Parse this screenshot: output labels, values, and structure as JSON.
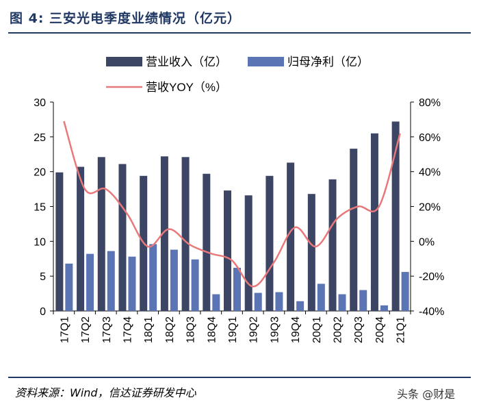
{
  "title": "图 4:  三安光电季度业绩情况（亿元）",
  "source": "资料来源：Wind，信达证券研发中心",
  "watermark": "头条 @财是",
  "colors": {
    "revenue": "#3c4563",
    "profit": "#5b74b3",
    "yoy": "#e8787a",
    "title": "#1f3864"
  },
  "chart_data": {
    "type": "bar",
    "categories": [
      "17Q1",
      "17Q2",
      "17Q3",
      "17Q4",
      "18Q1",
      "18Q2",
      "18Q3",
      "18Q4",
      "19Q1",
      "19Q2",
      "19Q3",
      "19Q4",
      "20Q1",
      "20Q2",
      "20Q3",
      "20Q4",
      "21Q1"
    ],
    "series": [
      {
        "name": "营业收入（亿）",
        "type": "bar",
        "axis": "left",
        "values": [
          19.9,
          20.7,
          22.1,
          21.1,
          19.4,
          22.2,
          22.1,
          19.7,
          17.3,
          16.6,
          19.4,
          21.3,
          16.8,
          18.9,
          23.3,
          25.5,
          27.2
        ]
      },
      {
        "name": "归母净利（亿）",
        "type": "bar",
        "axis": "left",
        "values": [
          6.8,
          8.2,
          8.6,
          7.8,
          9.6,
          8.8,
          7.4,
          2.4,
          6.2,
          2.6,
          2.7,
          1.4,
          3.9,
          2.4,
          3.0,
          0.8,
          5.6
        ]
      },
      {
        "name": "营收YOY（%）",
        "type": "line",
        "axis": "right",
        "values": [
          69,
          30,
          30,
          16,
          -3,
          7,
          -2,
          -7,
          -11,
          -26,
          -12,
          8,
          -3,
          13,
          20,
          20,
          62
        ]
      }
    ],
    "y_left": {
      "min": 0,
      "max": 30,
      "ticks": [
        0,
        5,
        10,
        15,
        20,
        25,
        30
      ]
    },
    "y_right": {
      "min": -40,
      "max": 80,
      "ticks": [
        "-40%",
        "-20%",
        "0%",
        "20%",
        "40%",
        "60%",
        "80%"
      ]
    },
    "legend": [
      "营业收入（亿）",
      "归母净利（亿）",
      "营收YOY（%）"
    ]
  }
}
